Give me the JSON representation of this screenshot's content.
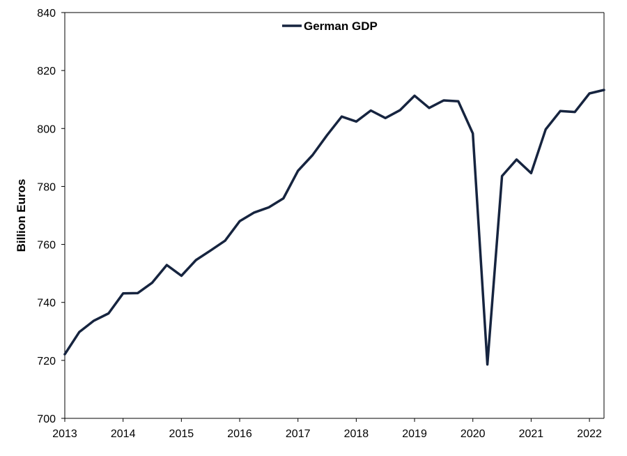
{
  "chart_data": {
    "type": "line",
    "title": "",
    "xlabel": "",
    "ylabel": "Billion Euros",
    "xlim": [
      2013,
      2022.25
    ],
    "ylim": [
      700,
      840
    ],
    "x_ticks": [
      2013,
      2014,
      2015,
      2016,
      2017,
      2018,
      2019,
      2020,
      2021,
      2022
    ],
    "x_tick_labels": [
      "2013",
      "2014",
      "2015",
      "2016",
      "2017",
      "2018",
      "2019",
      "2020",
      "2021",
      "2022"
    ],
    "y_ticks": [
      700,
      720,
      740,
      760,
      780,
      800,
      820,
      840
    ],
    "y_tick_labels": [
      "700",
      "720",
      "740",
      "760",
      "780",
      "800",
      "820",
      "840"
    ],
    "grid": false,
    "legend": {
      "position": "top-center"
    },
    "series": [
      {
        "name": "German GDP",
        "color": "#16243f",
        "x": [
          2013,
          2013.25,
          2013.5,
          2013.75,
          2014,
          2014.25,
          2014.5,
          2014.75,
          2015,
          2015.25,
          2015.5,
          2015.75,
          2016,
          2016.25,
          2016.5,
          2016.75,
          2017,
          2017.25,
          2017.5,
          2017.75,
          2018,
          2018.25,
          2018.5,
          2018.75,
          2019,
          2019.25,
          2019.5,
          2019.75,
          2020,
          2020.25,
          2020.5,
          2020.75,
          2021,
          2021.25,
          2021.5,
          2021.75,
          2022,
          2022.25
        ],
        "values": [
          722.1,
          729.8,
          733.7,
          736.2,
          743.1,
          743.2,
          746.8,
          752.9,
          749.2,
          754.6,
          757.9,
          761.3,
          768.0,
          771.0,
          772.8,
          775.9,
          785.4,
          790.8,
          797.7,
          804.1,
          802.4,
          806.2,
          803.6,
          806.3,
          811.3,
          807.1,
          809.7,
          809.4,
          798.3,
          718.6,
          783.6,
          789.3,
          784.6,
          799.7,
          806.0,
          805.7,
          812.1,
          813.3
        ]
      }
    ]
  }
}
